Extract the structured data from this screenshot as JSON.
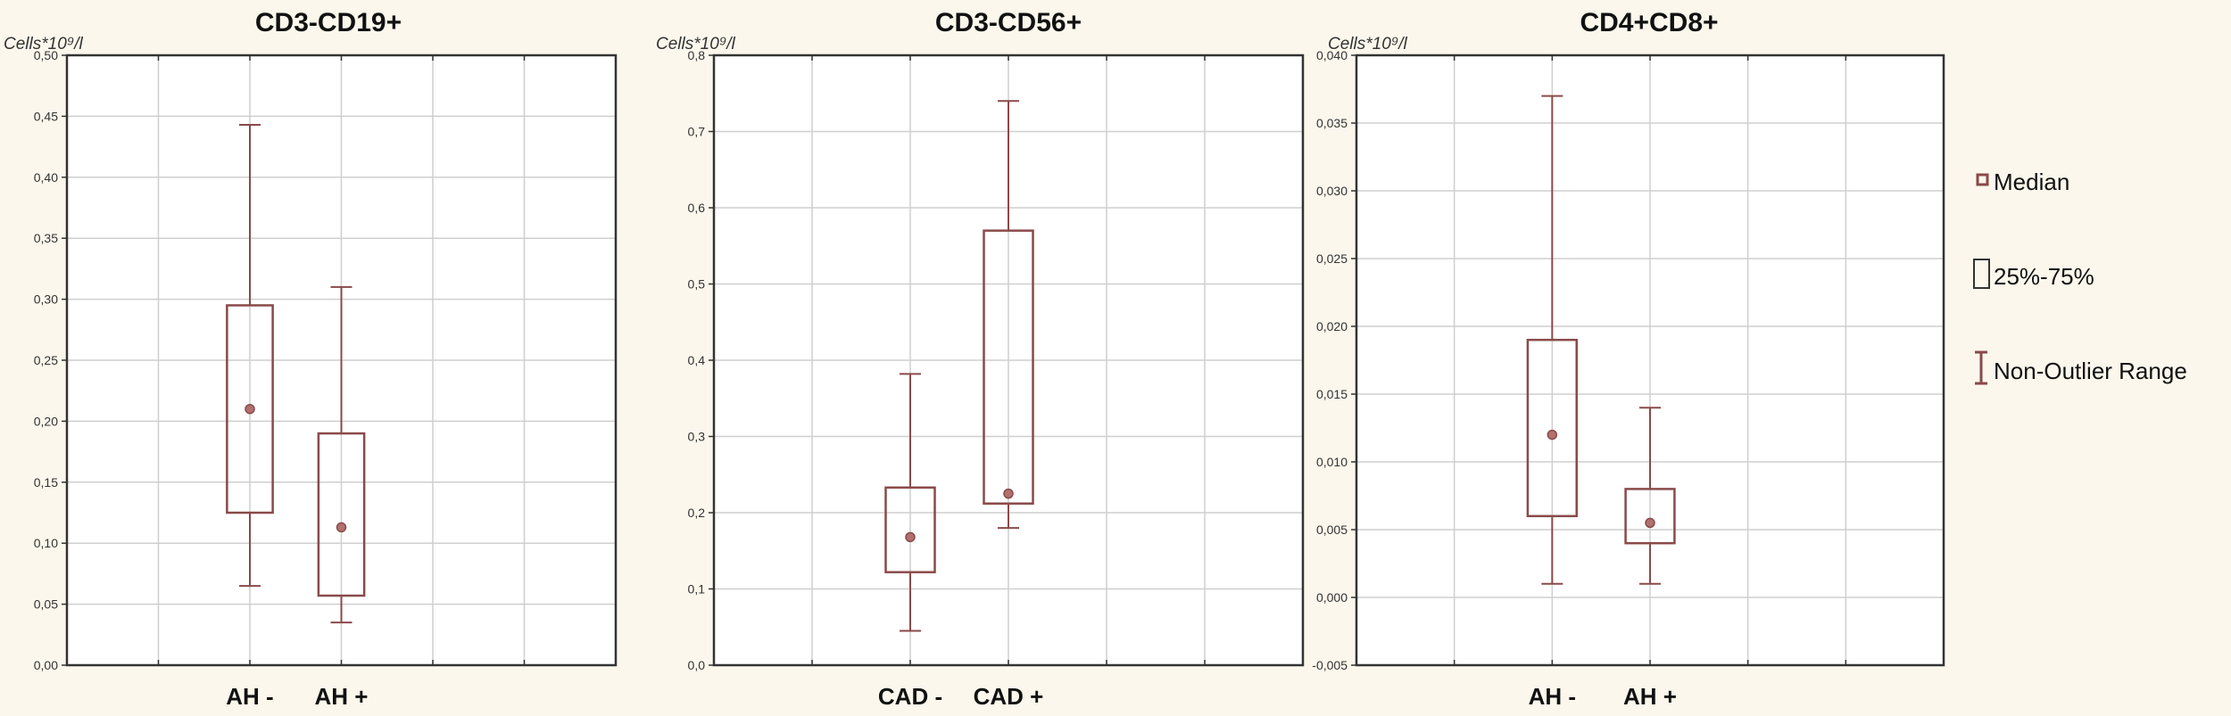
{
  "chart_data": [
    {
      "type": "boxplot",
      "title": "CD3-CD19+",
      "ylabel": "Cells*10⁹/l",
      "ylim": [
        0,
        0.5
      ],
      "yticks": [
        "0,00",
        "0,05",
        "0,10",
        "0,15",
        "0,20",
        "0,25",
        "0,30",
        "0,35",
        "0,40",
        "0,45",
        "0,50"
      ],
      "categories": [
        "AH -",
        "AH +"
      ],
      "boxes": [
        {
          "median": 0.21,
          "q1": 0.125,
          "q3": 0.295,
          "min": 0.065,
          "max": 0.443
        },
        {
          "median": 0.113,
          "q1": 0.057,
          "q3": 0.19,
          "min": 0.035,
          "max": 0.31
        }
      ]
    },
    {
      "type": "boxplot",
      "title": "CD3-CD56+",
      "ylabel": "Cells*10⁹/l",
      "ylim": [
        0,
        0.8
      ],
      "yticks": [
        "0,0",
        "0,1",
        "0,2",
        "0,3",
        "0,4",
        "0,5",
        "0,6",
        "0,7",
        "0,8"
      ],
      "categories": [
        "CAD -",
        "CAD +"
      ],
      "boxes": [
        {
          "median": 0.168,
          "q1": 0.122,
          "q3": 0.233,
          "min": 0.045,
          "max": 0.382
        },
        {
          "median": 0.225,
          "q1": 0.212,
          "q3": 0.57,
          "min": 0.18,
          "max": 0.74
        }
      ]
    },
    {
      "type": "boxplot",
      "title": "CD4+CD8+",
      "ylabel": "Cells*10⁹/l",
      "ylim": [
        -0.005,
        0.04
      ],
      "yticks": [
        "-0,005",
        "0,000",
        "0,005",
        "0,010",
        "0,015",
        "0,020",
        "0,025",
        "0,030",
        "0,035",
        "0,040"
      ],
      "categories": [
        "AH -",
        "AH +"
      ],
      "boxes": [
        {
          "median": 0.012,
          "q1": 0.006,
          "q3": 0.019,
          "min": 0.001,
          "max": 0.037
        },
        {
          "median": 0.0055,
          "q1": 0.004,
          "q3": 0.008,
          "min": 0.001,
          "max": 0.014
        }
      ]
    }
  ],
  "legend": {
    "items": [
      {
        "label": "Median",
        "icon": "median-marker-icon"
      },
      {
        "label": "25%-75%",
        "icon": "box-icon"
      },
      {
        "label": "Non-Outlier Range",
        "icon": "whisker-icon"
      }
    ]
  },
  "colors": {
    "box": "#8a4a4a",
    "median": "#8a4a4a",
    "median_fill": "#b07070",
    "frame": "#333333",
    "grid": "#cfcfcf",
    "panel_bg": "#ffffff",
    "page_bg": "#fbf7ec"
  }
}
